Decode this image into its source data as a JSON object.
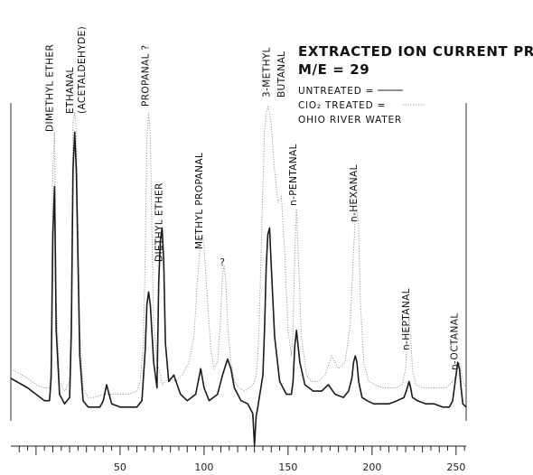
{
  "chart_data": {
    "type": "line",
    "title": "EXTRACTED ION CURRENT PROFILE",
    "subtitle": "M/E = 29",
    "xlabel": "",
    "ylabel": "",
    "xlim": [
      -15,
      256
    ],
    "x_ticks": [
      50,
      100,
      150,
      200,
      250
    ],
    "ylim": [
      0,
      100
    ],
    "grid": false,
    "legend": {
      "placement": "top-right",
      "entries": [
        {
          "label": "UNTREATED =",
          "line_style": "solid"
        },
        {
          "label": "ClO₂ TREATED =",
          "line_style": "dotted"
        },
        {
          "label": "OHIO RIVER WATER",
          "line_style": "none"
        }
      ]
    },
    "peak_labels": [
      {
        "text": "DIMETHYL ETHER",
        "x": 10
      },
      {
        "text": "ETHANAL",
        "x": 22
      },
      {
        "text": "(ACETALDEHYDE)",
        "x": 29
      },
      {
        "text": "PROPANAL ?",
        "x": 67
      },
      {
        "text": "DIETHYL ETHER",
        "x": 75
      },
      {
        "text": "METHYL PROPANAL",
        "x": 99
      },
      {
        "text": "?",
        "x": 111
      },
      {
        "text": "3-METHYL",
        "x": 139
      },
      {
        "text": "BUTANAL",
        "x": 148
      },
      {
        "text": "n-PENTANAL",
        "x": 155
      },
      {
        "text": "n-HEXANAL",
        "x": 191
      },
      {
        "text": "n-HEPTANAL",
        "x": 222
      },
      {
        "text": "n-OCTANAL",
        "x": 251
      }
    ],
    "series": [
      {
        "name": "UNTREATED",
        "style": "solid",
        "x": [
          -15,
          -5,
          0,
          5,
          8,
          9,
          10,
          11,
          12,
          14,
          17,
          20,
          21,
          22,
          23,
          24,
          26,
          28,
          31,
          35,
          38,
          40,
          42,
          45,
          50,
          55,
          60,
          63,
          65,
          66,
          67,
          68,
          70,
          72,
          73,
          74,
          75,
          76,
          77,
          79,
          82,
          86,
          90,
          95,
          98,
          100,
          103,
          108,
          111,
          114,
          116,
          118,
          122,
          126,
          129,
          130,
          131,
          132,
          135,
          136,
          137,
          138,
          139,
          140,
          142,
          145,
          149,
          152,
          153,
          154,
          155,
          157,
          160,
          165,
          170,
          174,
          178,
          183,
          186,
          188,
          189,
          190,
          191,
          192,
          194,
          197,
          201,
          205,
          210,
          215,
          219,
          221,
          222,
          223,
          224,
          227,
          232,
          237,
          242,
          246,
          248,
          250,
          251,
          252,
          253,
          254,
          256
        ],
        "y": [
          15,
          12,
          10,
          8,
          8,
          15,
          60,
          75,
          30,
          10,
          7,
          9,
          30,
          80,
          92,
          80,
          22,
          8,
          6,
          6,
          6,
          8,
          13,
          7,
          6,
          6,
          6,
          8,
          24,
          38,
          42,
          38,
          20,
          12,
          45,
          58,
          62,
          52,
          26,
          14,
          16,
          10,
          8,
          10,
          18,
          12,
          8,
          10,
          16,
          21,
          18,
          12,
          8,
          7,
          4,
          -6,
          3,
          6,
          16,
          30,
          50,
          60,
          62,
          50,
          28,
          14,
          10,
          10,
          14,
          25,
          30,
          20,
          13,
          11,
          11,
          13,
          10,
          9,
          11,
          15,
          20,
          22,
          20,
          14,
          9,
          8,
          7,
          7,
          7,
          8,
          9,
          12,
          14,
          12,
          9,
          8,
          7,
          7,
          6,
          6,
          8,
          16,
          20,
          18,
          12,
          7,
          6
        ]
      },
      {
        "name": "ClO₂ TREATED",
        "style": "dotted",
        "x": [
          -15,
          -5,
          0,
          5,
          8,
          9,
          10,
          11,
          12,
          14,
          17,
          20,
          21,
          22,
          23,
          24,
          26,
          28,
          31,
          35,
          40,
          45,
          50,
          55,
          60,
          62,
          64,
          65,
          66,
          67,
          68,
          69,
          70,
          72,
          74,
          75,
          77,
          80,
          83,
          87,
          91,
          94,
          96,
          98,
          99,
          100,
          102,
          104,
          106,
          108,
          110,
          111,
          112,
          113,
          114,
          116,
          118,
          121,
          124,
          127,
          129,
          130,
          131,
          132,
          133,
          134,
          135,
          136,
          137,
          138,
          139,
          140,
          142,
          144,
          146,
          148,
          150,
          152,
          153,
          154,
          155,
          156,
          158,
          161,
          164,
          168,
          172,
          176,
          180,
          184,
          187,
          189,
          190,
          191,
          192,
          193,
          195,
          198,
          202,
          206,
          210,
          214,
          218,
          220,
          221,
          222,
          223,
          224,
          226,
          230,
          235,
          240,
          244,
          246,
          248,
          250,
          251,
          252,
          253,
          254,
          256
        ],
        "y": [
          18,
          15,
          13,
          12,
          12,
          20,
          80,
          92,
          40,
          14,
          11,
          14,
          40,
          95,
          98,
          92,
          30,
          12,
          9,
          9,
          10,
          10,
          10,
          10,
          11,
          14,
          26,
          55,
          90,
          98,
          92,
          60,
          32,
          20,
          16,
          13,
          14,
          15,
          14,
          16,
          20,
          28,
          45,
          58,
          60,
          56,
          40,
          24,
          18,
          20,
          35,
          48,
          50,
          45,
          32,
          20,
          14,
          12,
          11,
          12,
          13,
          14,
          16,
          22,
          35,
          55,
          75,
          92,
          98,
          100,
          98,
          94,
          80,
          70,
          72,
          55,
          30,
          22,
          30,
          55,
          68,
          55,
          28,
          16,
          14,
          14,
          16,
          22,
          18,
          20,
          32,
          55,
          66,
          68,
          62,
          40,
          20,
          14,
          13,
          12,
          12,
          12,
          13,
          18,
          30,
          34,
          28,
          18,
          13,
          12,
          12,
          12,
          12,
          13,
          14,
          16,
          18,
          20,
          18,
          14,
          12
        ]
      }
    ]
  }
}
